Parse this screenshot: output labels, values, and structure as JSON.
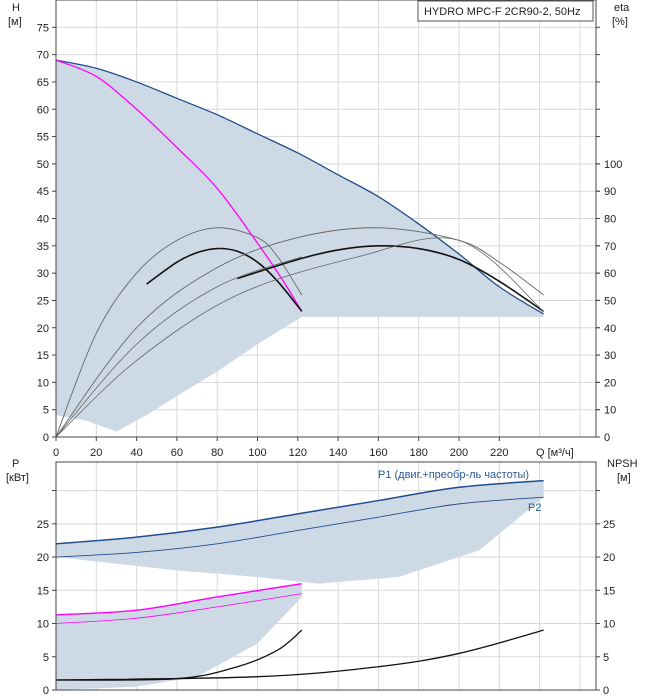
{
  "chart_data": [
    {
      "type": "line",
      "title": "HYDRO MPC-F 2CR90-2, 50Hz",
      "ylabel": "H",
      "yunit": "[м]",
      "y2label": "eta",
      "y2unit": "[%]",
      "xlabel": "Q [м³/ч]",
      "xlim": [
        0,
        268
      ],
      "ylim": [
        0,
        80
      ],
      "y2lim": [
        0,
        160
      ],
      "xticks": [
        0,
        20,
        40,
        60,
        80,
        100,
        120,
        140,
        160,
        180,
        200,
        220
      ],
      "yticks": [
        0,
        5,
        10,
        15,
        20,
        25,
        30,
        35,
        40,
        45,
        50,
        55,
        60,
        65,
        70,
        75
      ],
      "y2ticks": [
        0,
        10,
        20,
        30,
        40,
        50,
        60,
        70,
        80,
        90,
        100
      ],
      "region": {
        "upper": [
          [
            0,
            69
          ],
          [
            20,
            67.5
          ],
          [
            40,
            65
          ],
          [
            60,
            62
          ],
          [
            80,
            59
          ],
          [
            100,
            55.5
          ],
          [
            120,
            52
          ],
          [
            140,
            48
          ],
          [
            160,
            44
          ],
          [
            180,
            39
          ],
          [
            200,
            33.5
          ],
          [
            220,
            27.5
          ],
          [
            242,
            22.5
          ]
        ],
        "lower": [
          [
            242,
            22
          ],
          [
            122,
            22
          ],
          [
            100,
            17
          ],
          [
            80,
            12
          ],
          [
            60,
            7.5
          ],
          [
            45,
            4
          ],
          [
            30,
            1
          ],
          [
            15,
            3
          ],
          [
            0,
            4
          ]
        ]
      },
      "series": [
        {
          "name": "H max",
          "color": "#1f4e8c",
          "width": 1.3,
          "axis": "H",
          "points": [
            [
              0,
              69
            ],
            [
              20,
              67.5
            ],
            [
              40,
              65
            ],
            [
              60,
              62
            ],
            [
              80,
              59
            ],
            [
              100,
              55.5
            ],
            [
              120,
              52
            ],
            [
              140,
              48
            ],
            [
              160,
              44
            ],
            [
              180,
              39
            ],
            [
              200,
              33.5
            ],
            [
              220,
              27.5
            ],
            [
              242,
              22.5
            ]
          ]
        },
        {
          "name": "H min",
          "color": "#ff00ff",
          "width": 1.3,
          "axis": "H",
          "points": [
            [
              0,
              69
            ],
            [
              20,
              66
            ],
            [
              40,
              60
            ],
            [
              60,
              53
            ],
            [
              80,
              45.5
            ],
            [
              100,
              35.5
            ],
            [
              112,
              29
            ],
            [
              122,
              23
            ]
          ]
        },
        {
          "name": "eta 1 pump",
          "color": "#111",
          "width": 1.6,
          "axis": "eta",
          "points": [
            [
              45,
              56
            ],
            [
              60,
              64
            ],
            [
              70,
              67.5
            ],
            [
              80,
              69
            ],
            [
              90,
              68
            ],
            [
              100,
              64
            ],
            [
              110,
              57
            ],
            [
              122,
              46
            ]
          ]
        },
        {
          "name": "eta 1 pump max",
          "color": "#666",
          "width": 0.9,
          "axis": "eta",
          "points": [
            [
              0,
              0
            ],
            [
              20,
              38
            ],
            [
              40,
              60
            ],
            [
              60,
              72
            ],
            [
              80,
              76.6
            ],
            [
              100,
              73
            ],
            [
              110,
              66
            ],
            [
              122,
              52
            ]
          ]
        },
        {
          "name": "eta 2 pumps",
          "color": "#111",
          "width": 1.6,
          "axis": "eta",
          "points": [
            [
              90,
              58
            ],
            [
              120,
              65
            ],
            [
              140,
              68.5
            ],
            [
              160,
              70
            ],
            [
              180,
              69
            ],
            [
              200,
              65
            ],
            [
              220,
              57
            ],
            [
              242,
              46
            ]
          ]
        },
        {
          "name": "eta 2 pumps max",
          "color": "#666",
          "width": 0.9,
          "axis": "eta",
          "points": [
            [
              0,
              0
            ],
            [
              40,
              40
            ],
            [
              80,
              62
            ],
            [
              120,
              73
            ],
            [
              160,
              76.6
            ],
            [
              200,
              72
            ],
            [
              220,
              64
            ],
            [
              242,
              52
            ]
          ]
        },
        {
          "name": "eta low 1",
          "color": "#666",
          "width": 0.8,
          "axis": "eta",
          "points": [
            [
              0,
              0
            ],
            [
              40,
              34
            ],
            [
              80,
              55
            ],
            [
              122,
              66
            ]
          ]
        },
        {
          "name": "eta low 2",
          "color": "#666",
          "width": 0.8,
          "axis": "eta",
          "points": [
            [
              0,
              0
            ],
            [
              40,
              28
            ],
            [
              90,
              52
            ],
            [
              150,
              66
            ],
            [
              200,
              72
            ],
            [
              242,
              46
            ]
          ]
        }
      ]
    },
    {
      "type": "line",
      "ylabel": "P",
      "yunit": "[кВт]",
      "y2label": "NPSH",
      "y2unit": "[м]",
      "xlim": [
        0,
        268
      ],
      "ylim": [
        0,
        34.3
      ],
      "yticks": [
        0,
        5,
        10,
        15,
        20,
        25,
        30
      ],
      "ytick_labels": [
        "0",
        "5",
        "10",
        "15",
        "20",
        "25",
        ""
      ],
      "annotations": [
        "P1 (двиг.+преобр-ль частоты)",
        "P2"
      ],
      "regions": [
        {
          "upper": [
            [
              0,
              22
            ],
            [
              40,
              23
            ],
            [
              80,
              24.5
            ],
            [
              120,
              26.5
            ],
            [
              160,
              28.5
            ],
            [
              200,
              30.5
            ],
            [
              242,
              31.5
            ]
          ],
          "lower": [
            [
              242,
              29
            ],
            [
              210,
              21
            ],
            [
              170,
              17
            ],
            [
              130,
              16
            ],
            [
              100,
              17
            ],
            [
              60,
              18
            ],
            [
              0,
              20
            ]
          ]
        },
        {
          "upper": [
            [
              0,
              11.3
            ],
            [
              40,
              12
            ],
            [
              80,
              14
            ],
            [
              122,
              16
            ]
          ],
          "lower": [
            [
              122,
              14
            ],
            [
              100,
              7
            ],
            [
              70,
              2
            ],
            [
              40,
              0.5
            ],
            [
              0,
              0
            ]
          ]
        }
      ],
      "series": [
        {
          "name": "P1",
          "color": "#1f4e8c",
          "width": 1.5,
          "points": [
            [
              0,
              22
            ],
            [
              40,
              23
            ],
            [
              80,
              24.5
            ],
            [
              120,
              26.5
            ],
            [
              160,
              28.5
            ],
            [
              200,
              30.5
            ],
            [
              242,
              31.5
            ]
          ]
        },
        {
          "name": "P2",
          "color": "#1f4e8c",
          "width": 0.9,
          "points": [
            [
              0,
              20
            ],
            [
              40,
              20.7
            ],
            [
              80,
              22
            ],
            [
              120,
              24
            ],
            [
              160,
              26
            ],
            [
              200,
              28
            ],
            [
              242,
              29
            ]
          ]
        },
        {
          "name": "P1 min",
          "color": "#ff00ff",
          "width": 1.4,
          "points": [
            [
              0,
              11.3
            ],
            [
              40,
              12
            ],
            [
              80,
              14
            ],
            [
              122,
              16
            ]
          ]
        },
        {
          "name": "P2 min",
          "color": "#ff00ff",
          "width": 0.8,
          "points": [
            [
              0,
              10
            ],
            [
              40,
              10.8
            ],
            [
              80,
              12.5
            ],
            [
              122,
              14.5
            ]
          ]
        },
        {
          "name": "NPSH 1",
          "color": "#111",
          "width": 1.3,
          "points": [
            [
              0,
              1.5
            ],
            [
              60,
              1.7
            ],
            [
              90,
              3.5
            ],
            [
              110,
              6
            ],
            [
              122,
              9
            ]
          ]
        },
        {
          "name": "NPSH 2",
          "color": "#111",
          "width": 1.3,
          "points": [
            [
              0,
              1.5
            ],
            [
              100,
              2
            ],
            [
              160,
              3.5
            ],
            [
              200,
              5.5
            ],
            [
              242,
              9
            ]
          ]
        }
      ]
    }
  ]
}
